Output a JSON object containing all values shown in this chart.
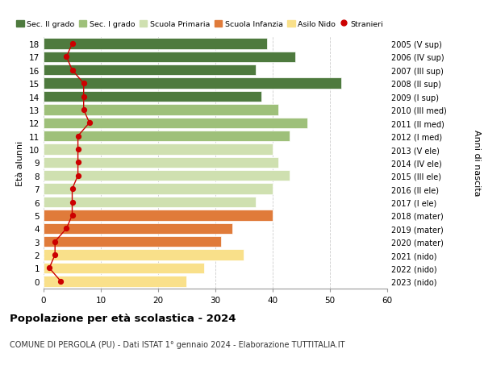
{
  "ages": [
    0,
    1,
    2,
    3,
    4,
    5,
    6,
    7,
    8,
    9,
    10,
    11,
    12,
    13,
    14,
    15,
    16,
    17,
    18
  ],
  "bar_values": [
    25,
    28,
    35,
    31,
    33,
    40,
    37,
    40,
    43,
    41,
    40,
    43,
    46,
    41,
    38,
    52,
    37,
    44,
    39
  ],
  "bar_colors": [
    "#f9e08a",
    "#f9e08a",
    "#f9e08a",
    "#e07b3a",
    "#e07b3a",
    "#e07b3a",
    "#cfe0b0",
    "#cfe0b0",
    "#cfe0b0",
    "#cfe0b0",
    "#cfe0b0",
    "#9ec07a",
    "#9ec07a",
    "#9ec07a",
    "#4e7a3e",
    "#4e7a3e",
    "#4e7a3e",
    "#4e7a3e",
    "#4e7a3e"
  ],
  "stranieri_values": [
    3,
    1,
    2,
    2,
    4,
    5,
    5,
    5,
    6,
    6,
    6,
    6,
    8,
    7,
    7,
    7,
    5,
    4,
    5
  ],
  "right_labels": [
    "2023 (nido)",
    "2022 (nido)",
    "2021 (nido)",
    "2020 (mater)",
    "2019 (mater)",
    "2018 (mater)",
    "2017 (I ele)",
    "2016 (II ele)",
    "2015 (III ele)",
    "2014 (IV ele)",
    "2013 (V ele)",
    "2012 (I med)",
    "2011 (II med)",
    "2010 (III med)",
    "2009 (I sup)",
    "2008 (II sup)",
    "2007 (III sup)",
    "2006 (IV sup)",
    "2005 (V sup)"
  ],
  "legend_labels": [
    "Sec. II grado",
    "Sec. I grado",
    "Scuola Primaria",
    "Scuola Infanzia",
    "Asilo Nido",
    "Stranieri"
  ],
  "legend_colors": [
    "#4e7a3e",
    "#9ec07a",
    "#cfe0b0",
    "#e07b3a",
    "#f9e08a",
    "#cc0000"
  ],
  "ylabel_left": "Età alunni",
  "ylabel_right": "Anni di nascita",
  "title": "Popolazione per età scolastica - 2024",
  "subtitle": "COMUNE DI PERGOLA (PU) - Dati ISTAT 1° gennaio 2024 - Elaborazione TUTTITALIA.IT",
  "xlim": [
    0,
    60
  ],
  "grid_color": "#cccccc",
  "bar_height": 0.82,
  "background_color": "#ffffff"
}
